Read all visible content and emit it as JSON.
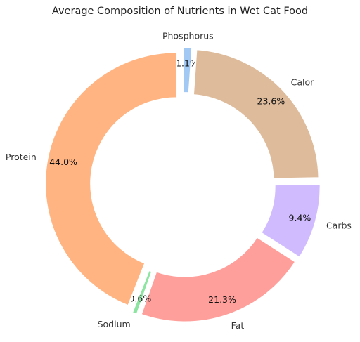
{
  "chart_data": {
    "type": "pie",
    "variant": "donut",
    "title": "Average Composition of Nutrients in Wet Cat Food",
    "categories": [
      "Phosphorus",
      "Calor",
      "Carbs",
      "Fat",
      "Sodium",
      "Protein"
    ],
    "values": [
      1.1,
      23.6,
      9.4,
      21.3,
      0.6,
      44.0
    ],
    "value_labels": [
      "1.1%",
      "23.6%",
      "9.4%",
      "21.3%",
      "0.6%",
      "44.0%"
    ],
    "colors": [
      "#a1c9f4",
      "#debb9b",
      "#d0bbff",
      "#ff9f9b",
      "#8de5a1",
      "#ffb482"
    ],
    "start_angle_deg": 90,
    "direction": "clockwise",
    "exploded": true,
    "legend": "none"
  }
}
